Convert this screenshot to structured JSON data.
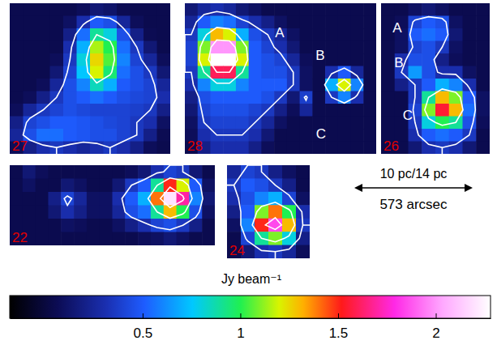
{
  "chart_data": {
    "type": "heatmap",
    "contour_levels": [
      0.35,
      0.9,
      1.6
    ],
    "panels": [
      {
        "label": "27",
        "grid": [
          [
            0.05,
            0.05,
            0.05,
            0.05,
            0.05,
            0.08,
            0.15,
            0.12,
            0.06,
            0.05,
            0.05,
            0.05
          ],
          [
            0.05,
            0.05,
            0.05,
            0.05,
            0.1,
            0.3,
            0.5,
            0.45,
            0.25,
            0.08,
            0.05,
            0.05
          ],
          [
            0.05,
            0.05,
            0.05,
            0.05,
            0.2,
            0.55,
            0.9,
            0.8,
            0.45,
            0.2,
            0.06,
            0.05
          ],
          [
            0.05,
            0.05,
            0.05,
            0.05,
            0.3,
            0.7,
            1.15,
            1.0,
            0.55,
            0.35,
            0.15,
            0.05
          ],
          [
            0.05,
            0.05,
            0.05,
            0.08,
            0.35,
            0.8,
            1.25,
            1.05,
            0.6,
            0.4,
            0.25,
            0.08
          ],
          [
            0.05,
            0.05,
            0.05,
            0.15,
            0.4,
            0.75,
            1.2,
            0.95,
            0.55,
            0.45,
            0.35,
            0.15
          ],
          [
            0.05,
            0.05,
            0.08,
            0.25,
            0.45,
            0.6,
            0.85,
            0.7,
            0.5,
            0.45,
            0.4,
            0.25
          ],
          [
            0.05,
            0.08,
            0.2,
            0.35,
            0.45,
            0.5,
            0.55,
            0.5,
            0.45,
            0.42,
            0.4,
            0.3
          ],
          [
            0.08,
            0.25,
            0.35,
            0.4,
            0.45,
            0.42,
            0.4,
            0.4,
            0.4,
            0.38,
            0.35,
            0.2
          ],
          [
            0.2,
            0.4,
            0.45,
            0.5,
            0.5,
            0.48,
            0.45,
            0.42,
            0.4,
            0.35,
            0.3,
            0.1
          ],
          [
            0.25,
            0.45,
            0.55,
            0.55,
            0.5,
            0.48,
            0.45,
            0.45,
            0.4,
            0.35,
            0.2,
            0.06
          ],
          [
            0.08,
            0.2,
            0.3,
            0.35,
            0.3,
            0.25,
            0.3,
            0.35,
            0.3,
            0.2,
            0.08,
            0.05
          ]
        ]
      },
      {
        "label": "28",
        "sources": [
          "A",
          "B",
          "C"
        ],
        "grid": [
          [
            0.15,
            0.25,
            0.3,
            0.25,
            0.15,
            0.1,
            0.05,
            0.05,
            0.05,
            0.05,
            0.05,
            0.05,
            0.05,
            0.05,
            0.05
          ],
          [
            0.25,
            0.5,
            0.6,
            0.55,
            0.4,
            0.3,
            0.2,
            0.1,
            0.05,
            0.05,
            0.05,
            0.05,
            0.05,
            0.05,
            0.05
          ],
          [
            0.35,
            0.8,
            1.3,
            1.2,
            0.7,
            0.45,
            0.35,
            0.25,
            0.1,
            0.05,
            0.05,
            0.05,
            0.05,
            0.05,
            0.05
          ],
          [
            0.4,
            1.1,
            2.0,
            2.0,
            1.1,
            0.5,
            0.4,
            0.3,
            0.15,
            0.05,
            0.05,
            0.05,
            0.05,
            0.05,
            0.05
          ],
          [
            0.4,
            1.2,
            2.3,
            2.3,
            1.2,
            0.5,
            0.45,
            0.4,
            0.25,
            0.08,
            0.05,
            0.05,
            0.05,
            0.05,
            0.05
          ],
          [
            0.35,
            0.9,
            1.6,
            1.6,
            0.9,
            0.5,
            0.45,
            0.45,
            0.35,
            0.1,
            0.05,
            0.3,
            0.5,
            0.25,
            0.05
          ],
          [
            0.3,
            0.6,
            0.8,
            0.8,
            0.6,
            0.5,
            0.5,
            0.5,
            0.35,
            0.1,
            0.05,
            0.7,
            1.2,
            0.6,
            0.05
          ],
          [
            0.2,
            0.45,
            0.5,
            0.5,
            0.5,
            0.5,
            0.45,
            0.35,
            0.15,
            0.38,
            0.05,
            0.35,
            0.6,
            0.3,
            0.05
          ],
          [
            0.15,
            0.4,
            0.45,
            0.45,
            0.45,
            0.4,
            0.35,
            0.2,
            0.08,
            0.25,
            0.05,
            0.05,
            0.05,
            0.05,
            0.05
          ],
          [
            0.1,
            0.35,
            0.4,
            0.4,
            0.4,
            0.35,
            0.25,
            0.1,
            0.05,
            0.05,
            0.05,
            0.05,
            0.05,
            0.05,
            0.05
          ],
          [
            0.08,
            0.3,
            0.35,
            0.35,
            0.35,
            0.3,
            0.15,
            0.05,
            0.05,
            0.05,
            0.05,
            0.05,
            0.05,
            0.05,
            0.05
          ],
          [
            0.05,
            0.2,
            0.3,
            0.3,
            0.3,
            0.2,
            0.08,
            0.05,
            0.05,
            0.05,
            0.05,
            0.05,
            0.05,
            0.05,
            0.05
          ]
        ]
      },
      {
        "label": "26",
        "sources": [
          "A",
          "B",
          "C"
        ],
        "grid": [
          [
            0.05,
            0.05,
            0.1,
            0.15,
            0.1,
            0.05,
            0.05,
            0.05
          ],
          [
            0.05,
            0.08,
            0.4,
            0.5,
            0.45,
            0.1,
            0.05,
            0.05
          ],
          [
            0.05,
            0.1,
            0.5,
            0.55,
            0.5,
            0.15,
            0.05,
            0.05
          ],
          [
            0.05,
            0.1,
            0.4,
            0.45,
            0.35,
            0.1,
            0.05,
            0.05
          ],
          [
            0.05,
            0.3,
            0.45,
            0.45,
            0.2,
            0.08,
            0.05,
            0.05
          ],
          [
            0.05,
            0.35,
            0.65,
            0.45,
            0.3,
            0.3,
            0.1,
            0.05
          ],
          [
            0.05,
            0.2,
            0.35,
            0.5,
            0.7,
            0.6,
            0.3,
            0.05
          ],
          [
            0.05,
            0.05,
            0.35,
            0.9,
            1.3,
            1.1,
            0.5,
            0.1
          ],
          [
            0.05,
            0.05,
            0.4,
            1.1,
            1.55,
            1.3,
            0.55,
            0.1
          ],
          [
            0.05,
            0.05,
            0.35,
            0.8,
            1.0,
            0.9,
            0.45,
            0.08
          ],
          [
            0.05,
            0.05,
            0.3,
            0.5,
            0.55,
            0.5,
            0.35,
            0.05
          ],
          [
            0.05,
            0.05,
            0.15,
            0.3,
            0.35,
            0.3,
            0.15,
            0.05
          ]
        ]
      },
      {
        "label": "22",
        "grid": [
          [
            0.05,
            0.15,
            0.08,
            0.05,
            0.05,
            0.05,
            0.05,
            0.05,
            0.05,
            0.08,
            0.15,
            0.3,
            0.4,
            0.35,
            0.15,
            0.05
          ],
          [
            0.05,
            0.1,
            0.05,
            0.05,
            0.15,
            0.1,
            0.05,
            0.05,
            0.15,
            0.35,
            0.5,
            0.9,
            1.5,
            1.2,
            0.5,
            0.1
          ],
          [
            0.05,
            0.05,
            0.05,
            0.2,
            0.4,
            0.25,
            0.1,
            0.1,
            0.3,
            0.5,
            0.7,
            1.4,
            2.2,
            1.7,
            0.6,
            0.15
          ],
          [
            0.05,
            0.05,
            0.05,
            0.15,
            0.3,
            0.2,
            0.1,
            0.1,
            0.25,
            0.45,
            0.55,
            0.9,
            1.3,
            1.0,
            0.45,
            0.1
          ],
          [
            0.05,
            0.05,
            0.05,
            0.05,
            0.1,
            0.08,
            0.05,
            0.05,
            0.1,
            0.2,
            0.3,
            0.4,
            0.45,
            0.35,
            0.2,
            0.05
          ],
          [
            0.05,
            0.05,
            0.05,
            0.05,
            0.05,
            0.05,
            0.05,
            0.05,
            0.05,
            0.05,
            0.08,
            0.1,
            0.15,
            0.1,
            0.05,
            0.05
          ]
        ]
      },
      {
        "label": "24",
        "grid": [
          [
            0.25,
            0.4,
            0.35,
            0.2,
            0.1,
            0.05
          ],
          [
            0.35,
            0.5,
            0.45,
            0.35,
            0.2,
            0.05
          ],
          [
            0.3,
            0.45,
            0.6,
            0.7,
            0.4,
            0.1
          ],
          [
            0.2,
            0.5,
            1.1,
            1.4,
            1.0,
            0.3
          ],
          [
            0.1,
            0.6,
            1.5,
            1.85,
            1.3,
            0.35
          ],
          [
            0.05,
            0.4,
            0.9,
            1.1,
            0.8,
            0.2
          ],
          [
            0.05,
            0.15,
            0.3,
            0.35,
            0.25,
            0.08
          ]
        ]
      }
    ],
    "scale_bar": {
      "length_label": "10 pc/14 pc",
      "angle_label": "573 arcsec"
    },
    "colorbar": {
      "label": "Jy beam⁻¹",
      "range": [
        -0.18,
        2.28
      ],
      "ticks": [
        0.5,
        1,
        1.5,
        2
      ]
    }
  }
}
